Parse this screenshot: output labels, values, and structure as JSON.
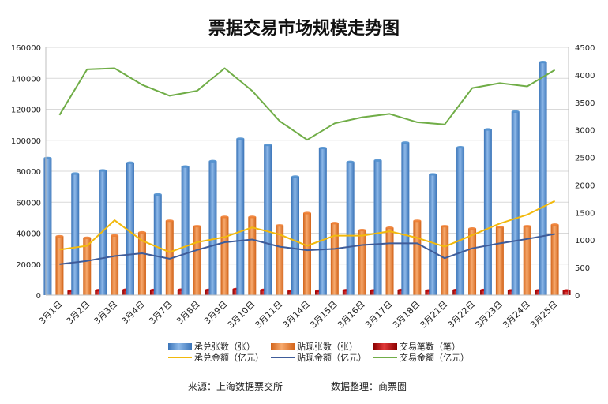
{
  "chart_data": {
    "type": "bar",
    "title": "票据交易市场规模走势图",
    "categories": [
      "3月1日",
      "3月2日",
      "3月3日",
      "3月4日",
      "3月7日",
      "3月8日",
      "3月9日",
      "3月10日",
      "3月11日",
      "3月14日",
      "3月15日",
      "3月16日",
      "3月17日",
      "3月18日",
      "3月21日",
      "3月22日",
      "3月23日",
      "3月24日",
      "3月25日"
    ],
    "y_left": {
      "min": 0,
      "max": 160000,
      "ticks": [
        "0",
        "20000",
        "40000",
        "60000",
        "80000",
        "100000",
        "120000",
        "140000",
        "160000"
      ]
    },
    "y_right": {
      "min": 0,
      "max": 4500,
      "ticks": [
        "0",
        "500",
        "1000",
        "1500",
        "2000",
        "2500",
        "3000",
        "3500",
        "4000",
        "4500"
      ]
    },
    "series": [
      {
        "name": "承兑张数（张）",
        "kind": "bar",
        "axis": "left",
        "color": "#4f8fce",
        "values": [
          88500,
          78500,
          80500,
          85500,
          65000,
          83000,
          86500,
          101000,
          97000,
          76500,
          95000,
          86000,
          87000,
          98500,
          78000,
          95500,
          107000,
          118500,
          150500
        ]
      },
      {
        "name": "贴现张数（张）",
        "kind": "bar",
        "axis": "left",
        "color": "#ee7d31",
        "values": [
          38000,
          37000,
          38500,
          40500,
          48000,
          44500,
          50500,
          50500,
          45000,
          53000,
          46500,
          42000,
          43500,
          48000,
          44500,
          43000,
          44000,
          44500,
          45500
        ]
      },
      {
        "name": "交易笔数（笔）",
        "kind": "bar",
        "axis": "left",
        "color": "#c00000",
        "values": [
          2800,
          3200,
          3500,
          3300,
          3500,
          3400,
          3900,
          3400,
          2800,
          2800,
          3200,
          3100,
          3300,
          3000,
          3300,
          3300,
          3100,
          3100,
          3000
        ]
      },
      {
        "name": "承兑金额（亿元）",
        "kind": "line",
        "axis": "right",
        "color": "#f2b90c",
        "values": [
          825,
          895,
          1360,
          990,
          780,
          960,
          1055,
          1230,
          1100,
          895,
          1080,
          1080,
          1160,
          1040,
          880,
          1090,
          1300,
          1460,
          1710
        ]
      },
      {
        "name": "贴现金额（亿元）",
        "kind": "line",
        "axis": "right",
        "color": "#3e5c9a",
        "values": [
          560,
          620,
          710,
          760,
          660,
          820,
          960,
          1010,
          880,
          815,
          840,
          910,
          940,
          940,
          670,
          850,
          940,
          1020,
          1110
        ]
      },
      {
        "name": "交易金额（亿元）",
        "kind": "line",
        "axis": "right",
        "color": "#70ad47",
        "values": [
          3270,
          4100,
          4120,
          3820,
          3620,
          3710,
          4120,
          3710,
          3160,
          2820,
          3120,
          3230,
          3290,
          3140,
          3100,
          3760,
          3850,
          3790,
          4090
        ]
      }
    ]
  },
  "footer": {
    "source": "来源：上海数据票交所",
    "organizer": "数据整理：商票圈"
  }
}
